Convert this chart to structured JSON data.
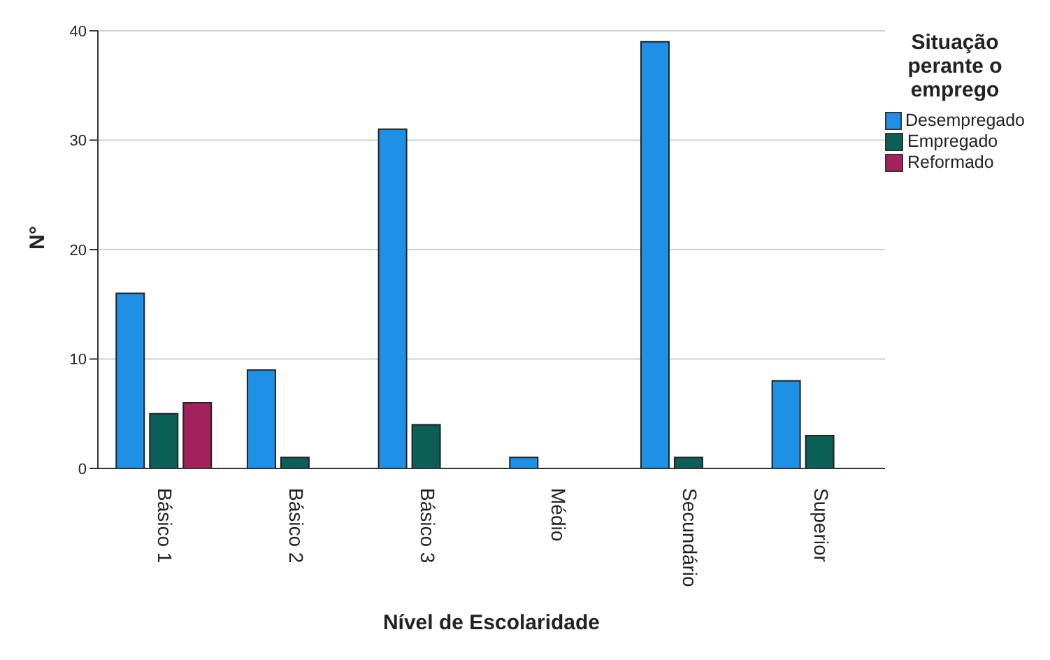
{
  "chart_data": {
    "type": "bar",
    "xlabel": "Nível de Escolaridade",
    "ylabel": "N°",
    "legend_title": "Situação perante o emprego",
    "categories": [
      "Básico 1",
      "Básico 2",
      "Básico 3",
      "Médio",
      "Secundário",
      "Superior"
    ],
    "series": [
      {
        "name": "Desempregado",
        "color": "#1e90e6",
        "values": [
          16,
          9,
          31,
          1,
          39,
          8
        ]
      },
      {
        "name": "Empregado",
        "color": "#0c5f57",
        "values": [
          5,
          1,
          4,
          null,
          1,
          3
        ]
      },
      {
        "name": "Reformado",
        "color": "#a3225c",
        "values": [
          6,
          null,
          null,
          null,
          null,
          null
        ]
      }
    ],
    "ylim": [
      0,
      40
    ],
    "yticks": [
      0,
      10,
      20,
      30,
      40
    ],
    "grid": "y",
    "legend": "top right"
  }
}
